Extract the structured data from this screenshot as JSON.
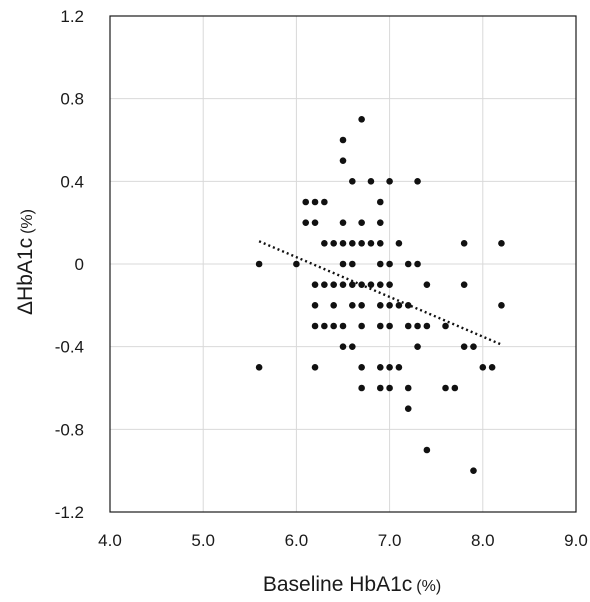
{
  "chart_data": {
    "type": "scatter",
    "title": "",
    "xlabel": "Baseline HbA1c",
    "xlabel_unit": "(%)",
    "ylabel": "ΔHbA1c",
    "ylabel_unit": "(%)",
    "xlim": [
      4.0,
      9.0
    ],
    "ylim": [
      -1.2,
      1.2
    ],
    "x_ticks": [
      4.0,
      5.0,
      6.0,
      7.0,
      8.0,
      9.0
    ],
    "x_tick_labels": [
      "4.0",
      "5.0",
      "6.0",
      "7.0",
      "8.0",
      "9.0"
    ],
    "y_ticks": [
      1.2,
      0.8,
      0.4,
      0,
      -0.4,
      -0.8,
      -1.2
    ],
    "y_tick_labels": [
      "1.2",
      "0.8",
      "0.4",
      "0",
      "-0.4",
      "-0.8",
      "-1.2"
    ],
    "grid": true,
    "trendline": {
      "style": "dotted",
      "x": [
        5.6,
        8.2
      ],
      "y": [
        0.11,
        -0.39
      ]
    },
    "points": [
      [
        5.6,
        0.0
      ],
      [
        5.6,
        -0.5
      ],
      [
        6.0,
        0.0
      ],
      [
        6.1,
        0.3
      ],
      [
        6.1,
        0.2
      ],
      [
        6.2,
        0.3
      ],
      [
        6.2,
        0.2
      ],
      [
        6.2,
        -0.1
      ],
      [
        6.2,
        -0.2
      ],
      [
        6.2,
        -0.3
      ],
      [
        6.2,
        -0.5
      ],
      [
        6.3,
        0.3
      ],
      [
        6.3,
        0.1
      ],
      [
        6.3,
        -0.1
      ],
      [
        6.3,
        -0.3
      ],
      [
        6.4,
        0.1
      ],
      [
        6.4,
        -0.1
      ],
      [
        6.4,
        -0.2
      ],
      [
        6.4,
        -0.3
      ],
      [
        6.5,
        0.6
      ],
      [
        6.5,
        0.5
      ],
      [
        6.5,
        0.2
      ],
      [
        6.5,
        0.1
      ],
      [
        6.5,
        0.0
      ],
      [
        6.5,
        -0.1
      ],
      [
        6.5,
        -0.3
      ],
      [
        6.5,
        -0.4
      ],
      [
        6.6,
        0.4
      ],
      [
        6.6,
        0.1
      ],
      [
        6.6,
        0.0
      ],
      [
        6.6,
        -0.1
      ],
      [
        6.6,
        -0.2
      ],
      [
        6.6,
        -0.4
      ],
      [
        6.7,
        0.7
      ],
      [
        6.7,
        0.2
      ],
      [
        6.7,
        0.1
      ],
      [
        6.7,
        -0.1
      ],
      [
        6.7,
        -0.2
      ],
      [
        6.7,
        -0.3
      ],
      [
        6.7,
        -0.5
      ],
      [
        6.7,
        -0.6
      ],
      [
        6.8,
        0.4
      ],
      [
        6.8,
        0.1
      ],
      [
        6.8,
        -0.1
      ],
      [
        6.9,
        0.3
      ],
      [
        6.9,
        0.2
      ],
      [
        6.9,
        0.1
      ],
      [
        6.9,
        0.0
      ],
      [
        6.9,
        -0.1
      ],
      [
        6.9,
        -0.2
      ],
      [
        6.9,
        -0.3
      ],
      [
        6.9,
        -0.5
      ],
      [
        6.9,
        -0.6
      ],
      [
        7.0,
        0.4
      ],
      [
        7.0,
        0.0
      ],
      [
        7.0,
        -0.1
      ],
      [
        7.0,
        -0.2
      ],
      [
        7.0,
        -0.3
      ],
      [
        7.0,
        -0.5
      ],
      [
        7.0,
        -0.6
      ],
      [
        7.1,
        0.1
      ],
      [
        7.1,
        -0.2
      ],
      [
        7.1,
        -0.5
      ],
      [
        7.2,
        0.0
      ],
      [
        7.2,
        -0.2
      ],
      [
        7.2,
        -0.3
      ],
      [
        7.2,
        -0.6
      ],
      [
        7.2,
        -0.7
      ],
      [
        7.3,
        0.4
      ],
      [
        7.3,
        0.0
      ],
      [
        7.3,
        -0.3
      ],
      [
        7.3,
        -0.4
      ],
      [
        7.4,
        -0.1
      ],
      [
        7.4,
        -0.3
      ],
      [
        7.4,
        -0.9
      ],
      [
        7.6,
        -0.3
      ],
      [
        7.6,
        -0.6
      ],
      [
        7.7,
        -0.6
      ],
      [
        7.8,
        0.1
      ],
      [
        7.8,
        -0.1
      ],
      [
        7.8,
        -0.4
      ],
      [
        7.9,
        -0.4
      ],
      [
        7.9,
        -1.0
      ],
      [
        8.0,
        -0.5
      ],
      [
        8.1,
        -0.5
      ],
      [
        8.2,
        0.1
      ],
      [
        8.2,
        -0.2
      ]
    ]
  }
}
